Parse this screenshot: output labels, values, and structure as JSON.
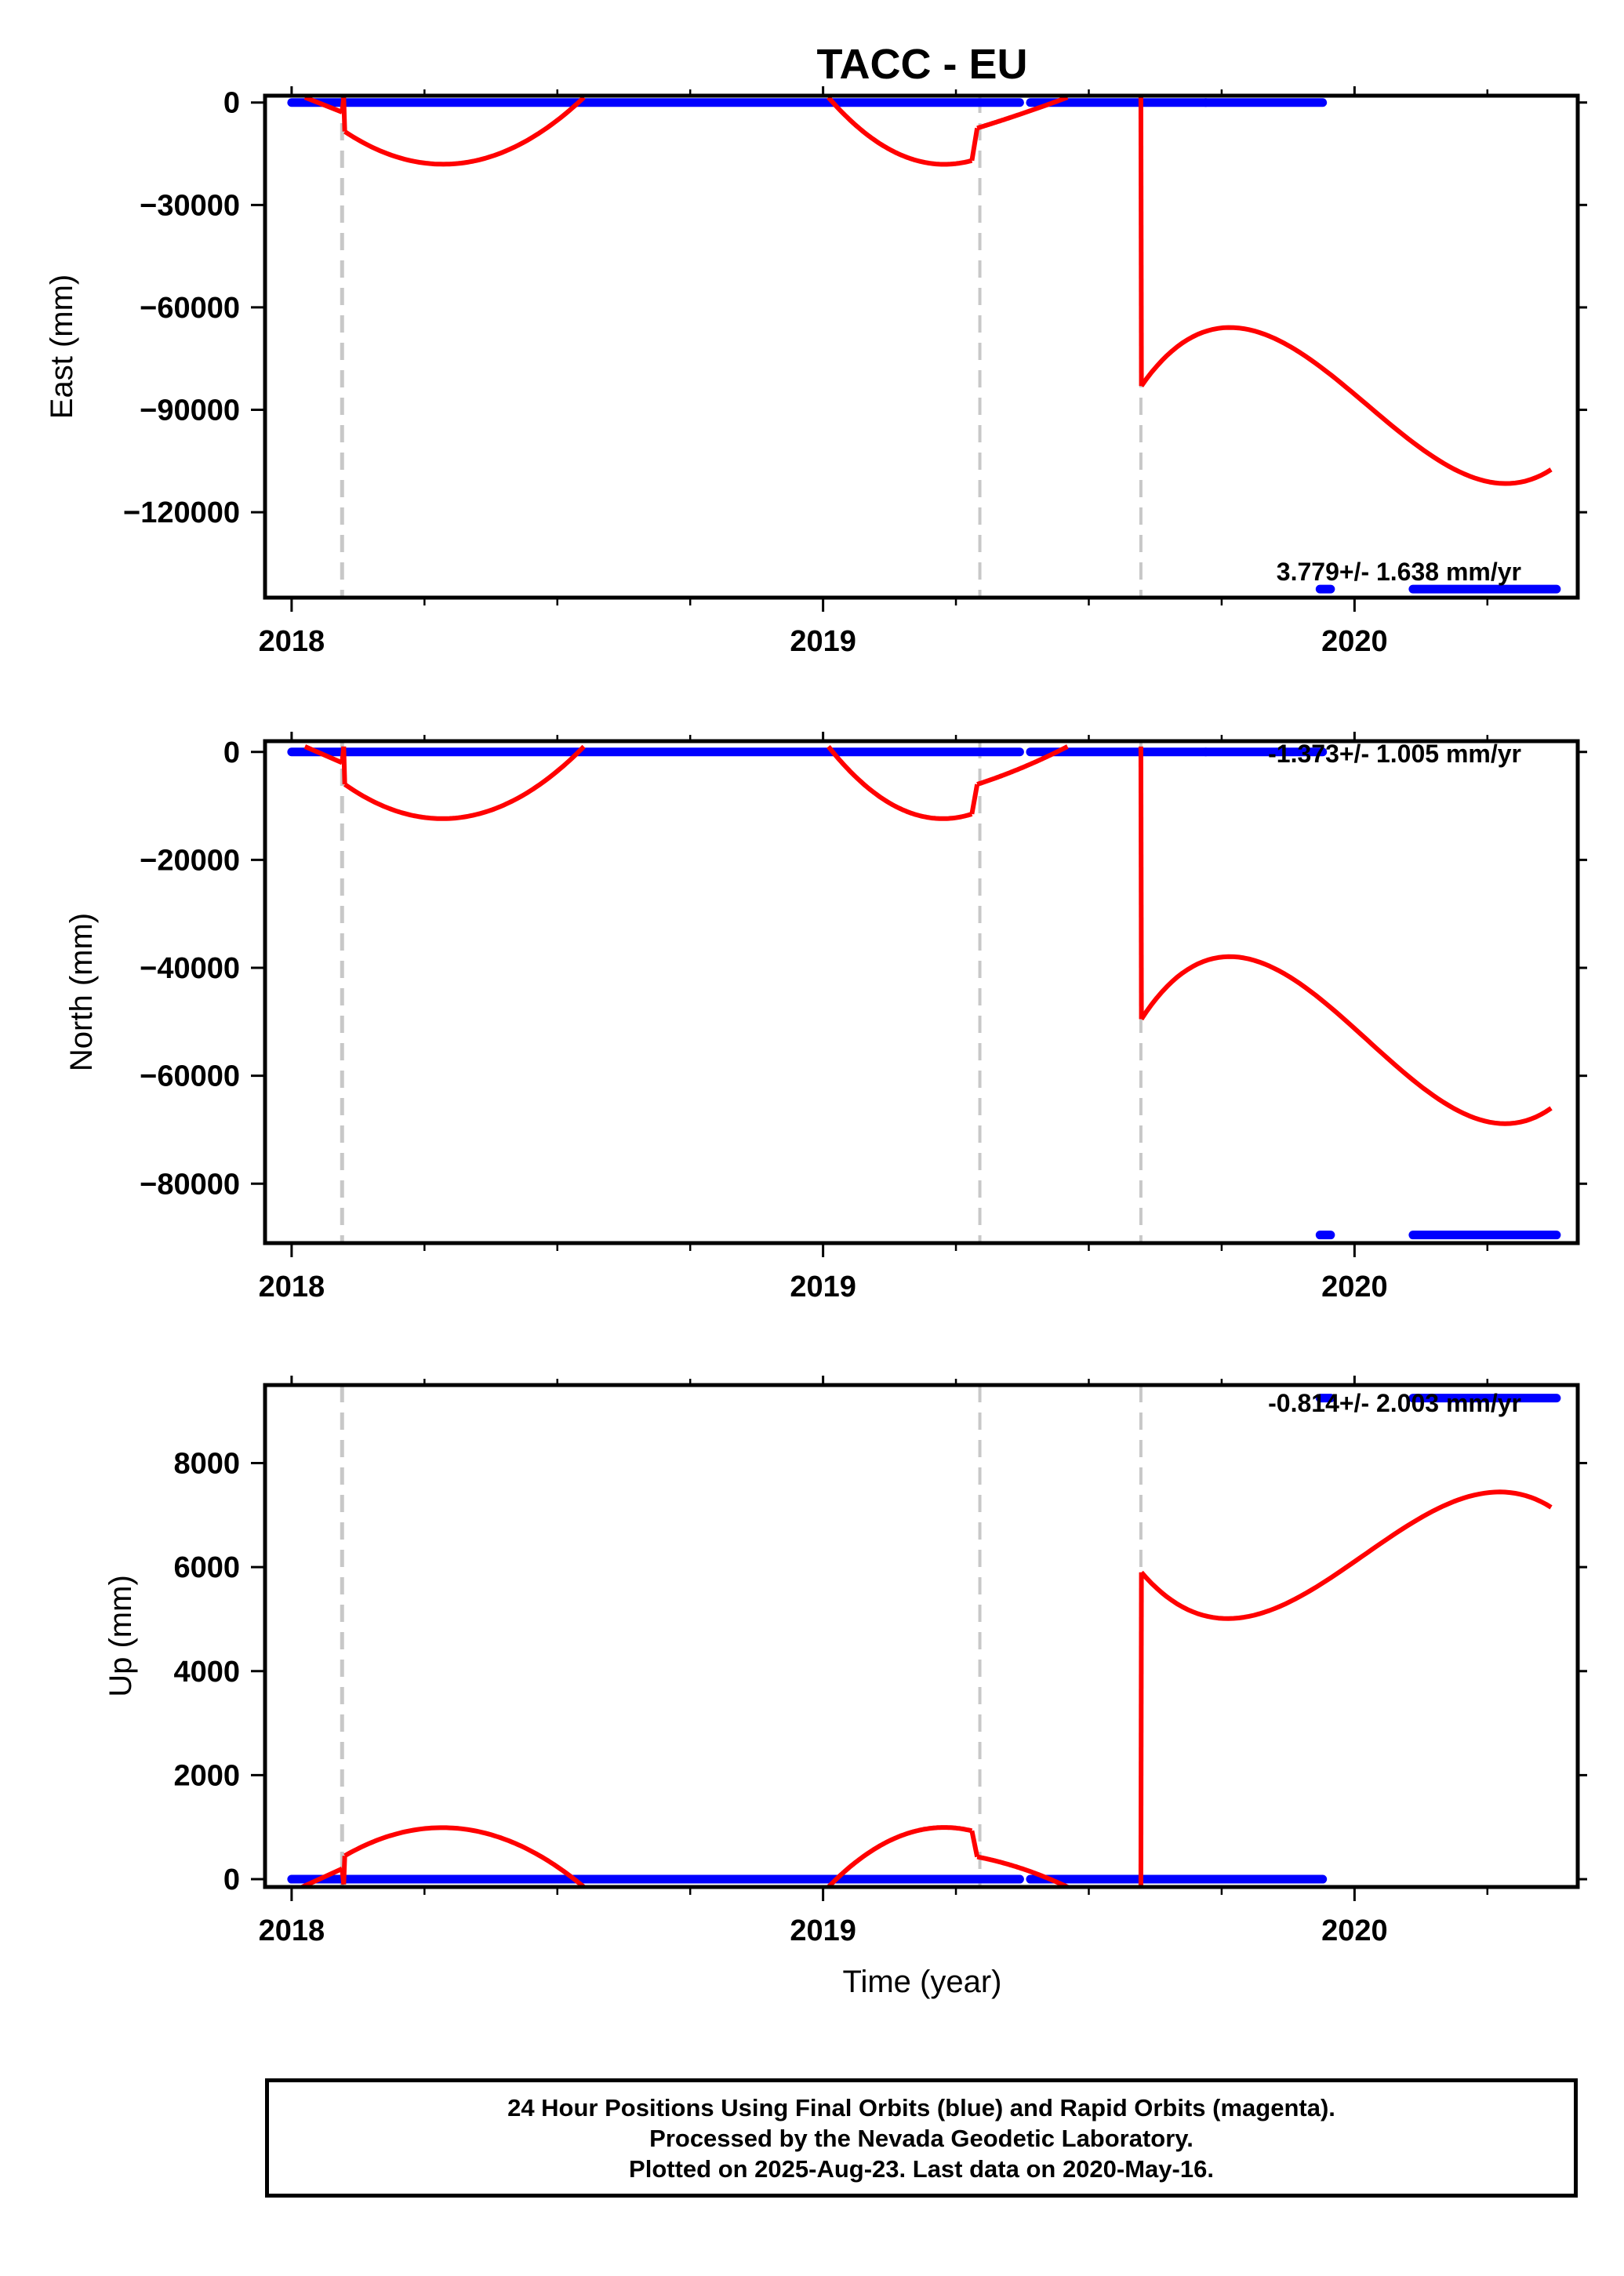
{
  "title": "TACC - EU",
  "xlabel": "Time (year)",
  "caption": [
    "24 Hour Positions Using Final Orbits (blue) and Rapid Orbits (magenta).",
    "Processed by the Nevada Geodetic Laboratory.",
    "Plotted on 2025-Aug-23. Last data on 2020-May-16."
  ],
  "colors": {
    "observations": "#0000ff",
    "model": "#ff0000",
    "steps": "#c8c8c8",
    "frame": "#000000"
  },
  "chart_data": [
    {
      "type": "scatter",
      "component": "East",
      "ylabel": "East (mm)",
      "rate_label": "3.779+/- 1.638 mm/yr",
      "xlim": [
        2017.95,
        2020.42
      ],
      "ylim": [
        -145000,
        2000
      ],
      "yticks": [
        0,
        -30000,
        -60000,
        -90000,
        -120000
      ],
      "ytick_labels": [
        "0",
        "−30000",
        "−60000",
        "−90000",
        "−120000"
      ],
      "xticks": [
        2018,
        2019,
        2020
      ],
      "xtick_labels": [
        "2018",
        "2019",
        "2020"
      ],
      "step_epochs": [
        2018.095,
        2019.295,
        2019.598
      ],
      "observation_segments": [
        {
          "x": [
            2018.0,
            2019.37
          ],
          "y": 0
        },
        {
          "x": [
            2019.39,
            2019.72
          ],
          "y": 0
        },
        {
          "x": [
            2019.72,
            2019.94
          ],
          "y": 0
        },
        {
          "x": [
            2019.935,
            2019.955
          ],
          "y": -142500
        },
        {
          "x": [
            2020.11,
            2020.38
          ],
          "y": -142500
        }
      ],
      "model_segments": [
        {
          "x": [
            2018.025,
            2018.095
          ],
          "y": [
            1500,
            -2800
          ]
        },
        {
          "x": [
            2018.095,
            2018.098
          ],
          "y": [
            -2800,
            1500
          ]
        },
        {
          "x": [
            2018.098,
            2018.1
          ],
          "y": [
            1500,
            -8500
          ]
        },
        {
          "x": [
            2018.1,
            2018.24,
            2018.55
          ],
          "y": [
            -8500,
            -17500,
            1500
          ]
        },
        {
          "x": [
            2019.01,
            2019.19,
            2019.28
          ],
          "y": [
            1500,
            -17500,
            -17000
          ]
        },
        {
          "x": [
            2019.28,
            2019.29
          ],
          "y": [
            -17000,
            -7500
          ]
        },
        {
          "x": [
            2019.29,
            2019.36,
            2019.46
          ],
          "y": [
            -7500,
            -4000,
            1500
          ]
        },
        {
          "x": [
            2019.598,
            2019.599
          ],
          "y": [
            1500,
            -83000
          ]
        },
        {
          "x": [
            2019.599,
            2019.78,
            2020.25,
            2020.37
          ],
          "y": [
            -83000,
            -66000,
            -111000,
            -107500
          ]
        }
      ]
    },
    {
      "type": "scatter",
      "component": "North",
      "ylabel": "North (mm)",
      "rate_label": "-1.373+/- 1.005 mm/yr",
      "xlim": [
        2017.95,
        2020.42
      ],
      "ylim": [
        -91000,
        2000
      ],
      "yticks": [
        0,
        -20000,
        -40000,
        -60000,
        -80000
      ],
      "ytick_labels": [
        "0",
        "−20000",
        "−40000",
        "−60000",
        "−80000"
      ],
      "xticks": [
        2018,
        2019,
        2020
      ],
      "xtick_labels": [
        "2018",
        "2019",
        "2020"
      ],
      "step_epochs": [
        2018.095,
        2019.295,
        2019.598
      ],
      "observation_segments": [
        {
          "x": [
            2018.0,
            2019.37
          ],
          "y": 0
        },
        {
          "x": [
            2019.39,
            2019.72
          ],
          "y": 0
        },
        {
          "x": [
            2019.72,
            2019.94
          ],
          "y": 0
        },
        {
          "x": [
            2019.935,
            2019.955
          ],
          "y": -89500
        },
        {
          "x": [
            2020.11,
            2020.38
          ],
          "y": -89500
        }
      ],
      "model_segments": [
        {
          "x": [
            2018.025,
            2018.095
          ],
          "y": [
            1000,
            -2000
          ]
        },
        {
          "x": [
            2018.095,
            2018.098
          ],
          "y": [
            -2000,
            1000
          ]
        },
        {
          "x": [
            2018.098,
            2018.1
          ],
          "y": [
            1000,
            -6000
          ]
        },
        {
          "x": [
            2018.1,
            2018.24,
            2018.55
          ],
          "y": [
            -6000,
            -12000,
            1000
          ]
        },
        {
          "x": [
            2019.01,
            2019.19,
            2019.28
          ],
          "y": [
            1000,
            -12000,
            -11500
          ]
        },
        {
          "x": [
            2019.28,
            2019.29
          ],
          "y": [
            -11500,
            -6000
          ]
        },
        {
          "x": [
            2019.29,
            2019.36,
            2019.46
          ],
          "y": [
            -6000,
            -3500,
            1000
          ]
        },
        {
          "x": [
            2019.598,
            2019.599
          ],
          "y": [
            1000,
            -49500
          ]
        },
        {
          "x": [
            2019.599,
            2019.78,
            2020.25,
            2020.37
          ],
          "y": [
            -49500,
            -38000,
            -68500,
            -66000
          ]
        }
      ]
    },
    {
      "type": "scatter",
      "component": "Up",
      "ylabel": "Up (mm)",
      "rate_label": "-0.814+/- 2.003 mm/yr",
      "xlim": [
        2017.95,
        2020.42
      ],
      "ylim": [
        -150,
        9500
      ],
      "yticks": [
        0,
        2000,
        4000,
        6000,
        8000
      ],
      "ytick_labels": [
        "0",
        "2000",
        "4000",
        "6000",
        "8000"
      ],
      "xticks": [
        2018,
        2019,
        2020
      ],
      "xtick_labels": [
        "2018",
        "2019",
        "2020"
      ],
      "step_epochs": [
        2018.095,
        2019.295,
        2019.598
      ],
      "observation_segments": [
        {
          "x": [
            2018.0,
            2019.37
          ],
          "y": 0
        },
        {
          "x": [
            2019.39,
            2019.72
          ],
          "y": 0
        },
        {
          "x": [
            2019.72,
            2019.94
          ],
          "y": 0
        },
        {
          "x": [
            2019.935,
            2019.955
          ],
          "y": 9250
        },
        {
          "x": [
            2020.11,
            2020.38
          ],
          "y": 9250
        }
      ],
      "model_segments": [
        {
          "x": [
            2018.02,
            2018.095
          ],
          "y": [
            -150,
            200
          ]
        },
        {
          "x": [
            2018.095,
            2018.098
          ],
          "y": [
            200,
            -100
          ]
        },
        {
          "x": [
            2018.098,
            2018.1
          ],
          "y": [
            -100,
            450
          ]
        },
        {
          "x": [
            2018.1,
            2018.24,
            2018.55
          ],
          "y": [
            450,
            960,
            -150
          ]
        },
        {
          "x": [
            2019.01,
            2019.19,
            2019.28
          ],
          "y": [
            -150,
            960,
            930
          ]
        },
        {
          "x": [
            2019.28,
            2019.29
          ],
          "y": [
            930,
            430
          ]
        },
        {
          "x": [
            2019.29,
            2019.36,
            2019.46
          ],
          "y": [
            430,
            250,
            -150
          ]
        },
        {
          "x": [
            2019.598,
            2019.599
          ],
          "y": [
            -150,
            5900
          ]
        },
        {
          "x": [
            2019.599,
            2019.78,
            2020.25,
            2020.37
          ],
          "y": [
            5900,
            5020,
            7430,
            7150
          ]
        }
      ]
    }
  ]
}
